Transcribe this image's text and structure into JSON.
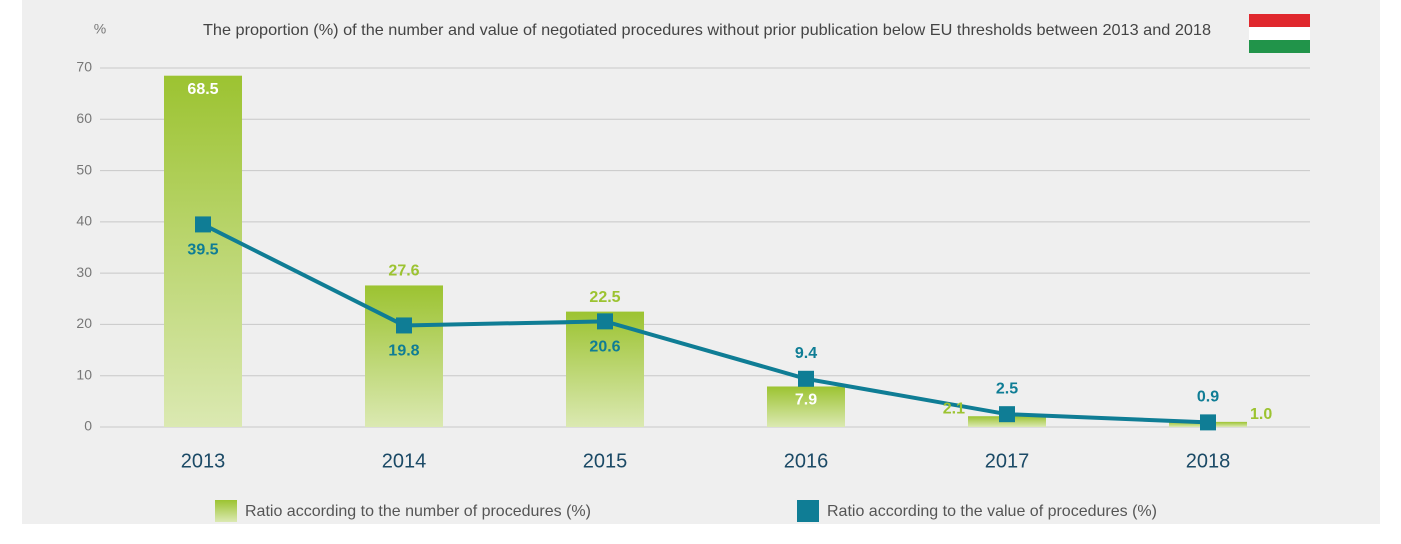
{
  "chart_data": {
    "type": "bar",
    "title": "The proportion (%) of the number and value of negotiated procedures without prior publication below EU thresholds between 2013 and 2018",
    "y_label": "%",
    "categories": [
      "2013",
      "2014",
      "2015",
      "2016",
      "2017",
      "2018"
    ],
    "series": [
      {
        "name": "Ratio according to the number of procedures (%)",
        "type": "bar",
        "color": "#9cc331",
        "values": [
          68.5,
          27.6,
          22.5,
          7.9,
          2.1,
          1.0
        ],
        "value_labels": [
          "68.5",
          "27.6",
          "22.5",
          "7.9",
          "2.1",
          "1.0"
        ]
      },
      {
        "name": "Ratio according to the value of procedures (%)",
        "type": "line",
        "color": "#0f7d95",
        "values": [
          39.5,
          19.8,
          20.6,
          9.4,
          2.5,
          0.9
        ]
      }
    ],
    "ylim": [
      0,
      70
    ],
    "yticks": [
      0,
      10,
      20,
      30,
      40,
      50,
      60,
      70
    ],
    "grid": true
  }
}
